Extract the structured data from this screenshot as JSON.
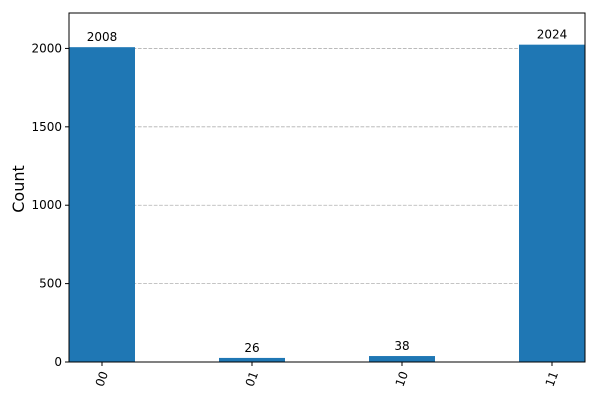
{
  "chart_data": {
    "type": "bar",
    "categories": [
      "00",
      "01",
      "10",
      "11"
    ],
    "values": [
      2008,
      26,
      38,
      2024
    ],
    "data_labels": [
      "2008",
      "26",
      "38",
      "2024"
    ],
    "title": "",
    "xlabel": "",
    "ylabel": "Count",
    "ylim": [
      0,
      2226
    ],
    "yticks": [
      0,
      500,
      1000,
      1500,
      2000
    ],
    "ytick_labels": [
      "0",
      "500",
      "1000",
      "1500",
      "2000"
    ],
    "xtick_rotation_deg": 70,
    "grid": {
      "y": true,
      "x": false,
      "style": "dashed"
    },
    "bar_color": "#1f77b4"
  }
}
